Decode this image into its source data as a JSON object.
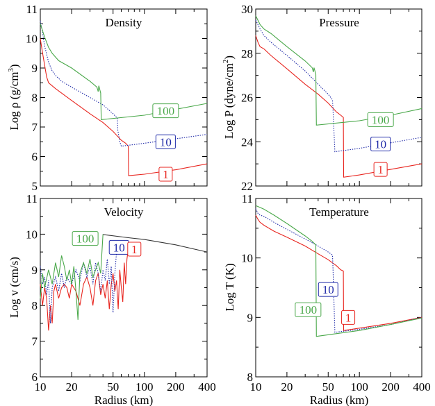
{
  "x_axis_label": "Radius (km)",
  "colors": {
    "c1": "#e8251f",
    "c10": "#1f2aa8",
    "c100": "#4aa84a",
    "single": "#333333"
  },
  "chart_data": [
    {
      "type": "line",
      "title": "Density",
      "ylabel": "Log ρ (g/cm³)",
      "ylabel_parts": [
        "Log ρ (g/cm",
        "3",
        ")"
      ],
      "xlabel": "Radius (km)",
      "xscale": "log",
      "xlim": [
        10,
        400
      ],
      "ylim": [
        5,
        11
      ],
      "xticks": [
        10,
        20,
        50,
        100,
        200,
        400
      ],
      "yticks": [
        5,
        6,
        7,
        8,
        9,
        10,
        11
      ],
      "series": [
        {
          "name": "1",
          "color": "#e8251f",
          "dash": "solid",
          "x": [
            10,
            10.4,
            11,
            11.5,
            12,
            14,
            20,
            30,
            40,
            50,
            60,
            66,
            70,
            70.5,
            100,
            200,
            400
          ],
          "y": [
            10.0,
            9.6,
            9.1,
            8.7,
            8.5,
            8.3,
            7.9,
            7.45,
            7.15,
            6.85,
            6.55,
            6.45,
            6.35,
            5.35,
            5.4,
            5.55,
            5.75
          ]
        },
        {
          "name": "10",
          "color": "#1f2aa8",
          "dash": "dotted",
          "x": [
            10,
            10.5,
            11,
            12,
            13,
            14,
            16,
            20,
            30,
            40,
            50,
            55,
            55.5,
            58,
            60,
            100,
            200,
            400
          ],
          "y": [
            10.6,
            10.2,
            9.75,
            9.2,
            8.9,
            8.75,
            8.55,
            8.35,
            8.0,
            7.75,
            7.45,
            7.3,
            6.9,
            6.5,
            6.35,
            6.45,
            6.6,
            6.75
          ]
        },
        {
          "name": "100",
          "color": "#4aa84a",
          "dash": "solid",
          "x": [
            10,
            11,
            12,
            13,
            15,
            20,
            30,
            35,
            36,
            36.5,
            38,
            38.5,
            100,
            200,
            400
          ],
          "y": [
            10.5,
            10.05,
            9.7,
            9.5,
            9.25,
            9.0,
            8.55,
            8.35,
            8.2,
            8.4,
            8.15,
            7.25,
            7.4,
            7.6,
            7.8
          ]
        }
      ],
      "annotations": [
        {
          "text": "100",
          "color": "#4aa84a",
          "x": 160,
          "y": 7.55
        },
        {
          "text": "10",
          "color": "#1f2aa8",
          "x": 160,
          "y": 6.5
        },
        {
          "text": "1",
          "color": "#e8251f",
          "x": 160,
          "y": 5.4
        }
      ]
    },
    {
      "type": "line",
      "title": "Pressure",
      "ylabel": "Log P (dyne/cm²)",
      "ylabel_parts": [
        "Log P (dyne/cm",
        "2",
        ")"
      ],
      "xlabel": "Radius (km)",
      "xscale": "log",
      "xlim": [
        10,
        400
      ],
      "ylim": [
        22,
        30
      ],
      "xticks": [
        10,
        20,
        50,
        100,
        200,
        400
      ],
      "yticks": [
        22,
        24,
        26,
        28,
        30
      ],
      "series": [
        {
          "name": "1",
          "color": "#e8251f",
          "dash": "solid",
          "x": [
            10,
            10.5,
            11,
            12,
            14,
            20,
            30,
            40,
            50,
            60,
            66,
            70,
            70.5,
            100,
            200,
            400
          ],
          "y": [
            28.8,
            28.5,
            28.3,
            28.2,
            27.9,
            27.3,
            26.6,
            26.15,
            25.75,
            25.35,
            25.2,
            25.1,
            22.4,
            22.5,
            22.75,
            23.0
          ]
        },
        {
          "name": "10",
          "color": "#1f2aa8",
          "dash": "dotted",
          "x": [
            10,
            11,
            12,
            14,
            20,
            30,
            40,
            50,
            55,
            55.5,
            58,
            100,
            200,
            400
          ],
          "y": [
            29.5,
            29.1,
            28.8,
            28.5,
            27.9,
            27.2,
            26.6,
            26.15,
            25.9,
            25.6,
            23.55,
            23.7,
            23.95,
            24.2
          ]
        },
        {
          "name": "100",
          "color": "#4aa84a",
          "dash": "solid",
          "x": [
            10,
            11,
            12,
            14,
            20,
            30,
            35,
            36,
            36.5,
            38,
            38.5,
            100,
            200,
            400
          ],
          "y": [
            29.7,
            29.3,
            29.1,
            28.9,
            28.3,
            27.65,
            27.35,
            27.15,
            27.35,
            27.05,
            24.75,
            24.95,
            25.2,
            25.5
          ]
        }
      ],
      "annotations": [
        {
          "text": "100",
          "color": "#4aa84a",
          "x": 160,
          "y": 25.0
        },
        {
          "text": "10",
          "color": "#1f2aa8",
          "x": 160,
          "y": 23.9
        },
        {
          "text": "1",
          "color": "#e8251f",
          "x": 160,
          "y": 22.75
        }
      ]
    },
    {
      "type": "line",
      "title": "Velocity",
      "ylabel": "Log v (cm/s)",
      "ylabel_parts": [
        "Log v (cm/s)",
        "",
        ""
      ],
      "xlabel": "Radius (km)",
      "xscale": "log",
      "xlim": [
        10,
        400
      ],
      "ylim": [
        6,
        11
      ],
      "xticks": [
        10,
        20,
        50,
        100,
        200,
        400
      ],
      "yticks": [
        6,
        7,
        8,
        9,
        10,
        11
      ],
      "series": [
        {
          "name": "1",
          "color": "#e8251f",
          "dash": "solid",
          "x": [
            10,
            10.5,
            11,
            11.5,
            12,
            12.5,
            13,
            13.5,
            14,
            15,
            16,
            17,
            18,
            19,
            20,
            22,
            24,
            26,
            28,
            30,
            32,
            34,
            36,
            38,
            40,
            42,
            44,
            46,
            48,
            50,
            52,
            54,
            56,
            58,
            60,
            62,
            64,
            66,
            68,
            70
          ],
          "y": [
            8.6,
            8.0,
            8.5,
            8.2,
            7.3,
            8.0,
            7.5,
            8.4,
            8.6,
            8.2,
            8.5,
            8.6,
            8.5,
            8.2,
            8.6,
            8.4,
            8.0,
            8.6,
            8.8,
            8.5,
            8.0,
            8.7,
            8.9,
            8.3,
            8.6,
            8.2,
            8.7,
            7.9,
            8.6,
            8.9,
            8.4,
            8.7,
            7.9,
            9.0,
            8.5,
            8.1,
            9.2,
            8.6,
            9.3,
            9.6
          ]
        },
        {
          "name": "10",
          "color": "#1f2aa8",
          "dash": "dotted",
          "x": [
            10,
            10.5,
            11,
            11.5,
            12,
            12.5,
            13,
            14,
            15,
            16,
            17,
            18,
            20,
            22,
            24,
            26,
            28,
            30,
            32,
            34,
            36,
            38,
            40,
            42,
            44,
            46,
            48,
            50,
            52,
            54,
            55
          ],
          "y": [
            9.1,
            8.6,
            8.8,
            8.3,
            8.7,
            7.5,
            8.5,
            8.8,
            8.4,
            8.9,
            8.5,
            8.8,
            8.6,
            9.0,
            8.7,
            9.2,
            8.8,
            9.1,
            8.6,
            9.2,
            8.9,
            8.4,
            9.0,
            8.7,
            9.3,
            8.6,
            9.1,
            7.8,
            8.9,
            9.5,
            9.8
          ]
        },
        {
          "name": "100",
          "color": "#4aa84a",
          "dash": "solid",
          "x": [
            10,
            10.5,
            11,
            12,
            13,
            14,
            15,
            16,
            17,
            18,
            19,
            20,
            21,
            22,
            23,
            24,
            26,
            28,
            30,
            32,
            34,
            36,
            38,
            40
          ],
          "y": [
            8.2,
            8.9,
            8.5,
            9.0,
            8.6,
            9.2,
            8.8,
            9.4,
            9.1,
            8.7,
            9.0,
            8.6,
            9.1,
            8.4,
            7.6,
            8.9,
            9.2,
            8.9,
            9.3,
            8.8,
            9.0,
            9.2,
            8.9,
            10.0
          ]
        },
        {
          "name": "",
          "color": "#333333",
          "dash": "solid",
          "x": [
            40,
            70,
            100,
            200,
            400
          ],
          "y": [
            9.99,
            9.9,
            9.85,
            9.7,
            9.5
          ]
        }
      ],
      "annotations": [
        {
          "text": "100",
          "color": "#4aa84a",
          "x": 27,
          "y": 9.88
        },
        {
          "text": "10",
          "color": "#1f2aa8",
          "x": 57,
          "y": 9.63
        },
        {
          "text": "1",
          "color": "#e8251f",
          "x": 80,
          "y": 9.58
        }
      ]
    },
    {
      "type": "line",
      "title": "Temperature",
      "ylabel": "Log T (K)",
      "ylabel_parts": [
        "Log T (K)",
        "",
        ""
      ],
      "xlabel": "Radius (km)",
      "xscale": "log",
      "xlim": [
        10,
        400
      ],
      "ylim": [
        8,
        11
      ],
      "xticks": [
        10,
        20,
        50,
        100,
        200,
        400
      ],
      "yticks": [
        8,
        9,
        10,
        11
      ],
      "series": [
        {
          "name": "1",
          "color": "#e8251f",
          "dash": "solid",
          "x": [
            10,
            10.5,
            11,
            12,
            15,
            20,
            30,
            40,
            50,
            60,
            66,
            70,
            70.5,
            100,
            200,
            400
          ],
          "y": [
            10.72,
            10.65,
            10.6,
            10.55,
            10.45,
            10.35,
            10.2,
            10.07,
            9.97,
            9.87,
            9.8,
            9.78,
            8.78,
            8.82,
            8.9,
            9.0
          ]
        },
        {
          "name": "10",
          "color": "#1f2aa8",
          "dash": "dotted",
          "x": [
            10,
            10.5,
            11,
            12,
            15,
            20,
            30,
            40,
            50,
            55,
            55.5,
            58,
            100,
            200,
            400
          ],
          "y": [
            10.83,
            10.75,
            10.72,
            10.7,
            10.6,
            10.48,
            10.32,
            10.2,
            10.1,
            10.05,
            9.9,
            8.75,
            8.8,
            8.88,
            9.0
          ]
        },
        {
          "name": "100",
          "color": "#4aa84a",
          "dash": "solid",
          "x": [
            10,
            11,
            12,
            15,
            20,
            30,
            35,
            38,
            38.5,
            100,
            200,
            400
          ],
          "y": [
            10.88,
            10.85,
            10.82,
            10.72,
            10.58,
            10.37,
            10.28,
            10.22,
            8.68,
            8.78,
            8.88,
            8.99
          ]
        }
      ],
      "annotations": [
        {
          "text": "100",
          "color": "#4aa84a",
          "x": 32,
          "y": 9.13
        },
        {
          "text": "10",
          "color": "#1f2aa8",
          "x": 50,
          "y": 9.47
        },
        {
          "text": "1",
          "color": "#e8251f",
          "x": 78,
          "y": 9.0
        }
      ]
    }
  ]
}
